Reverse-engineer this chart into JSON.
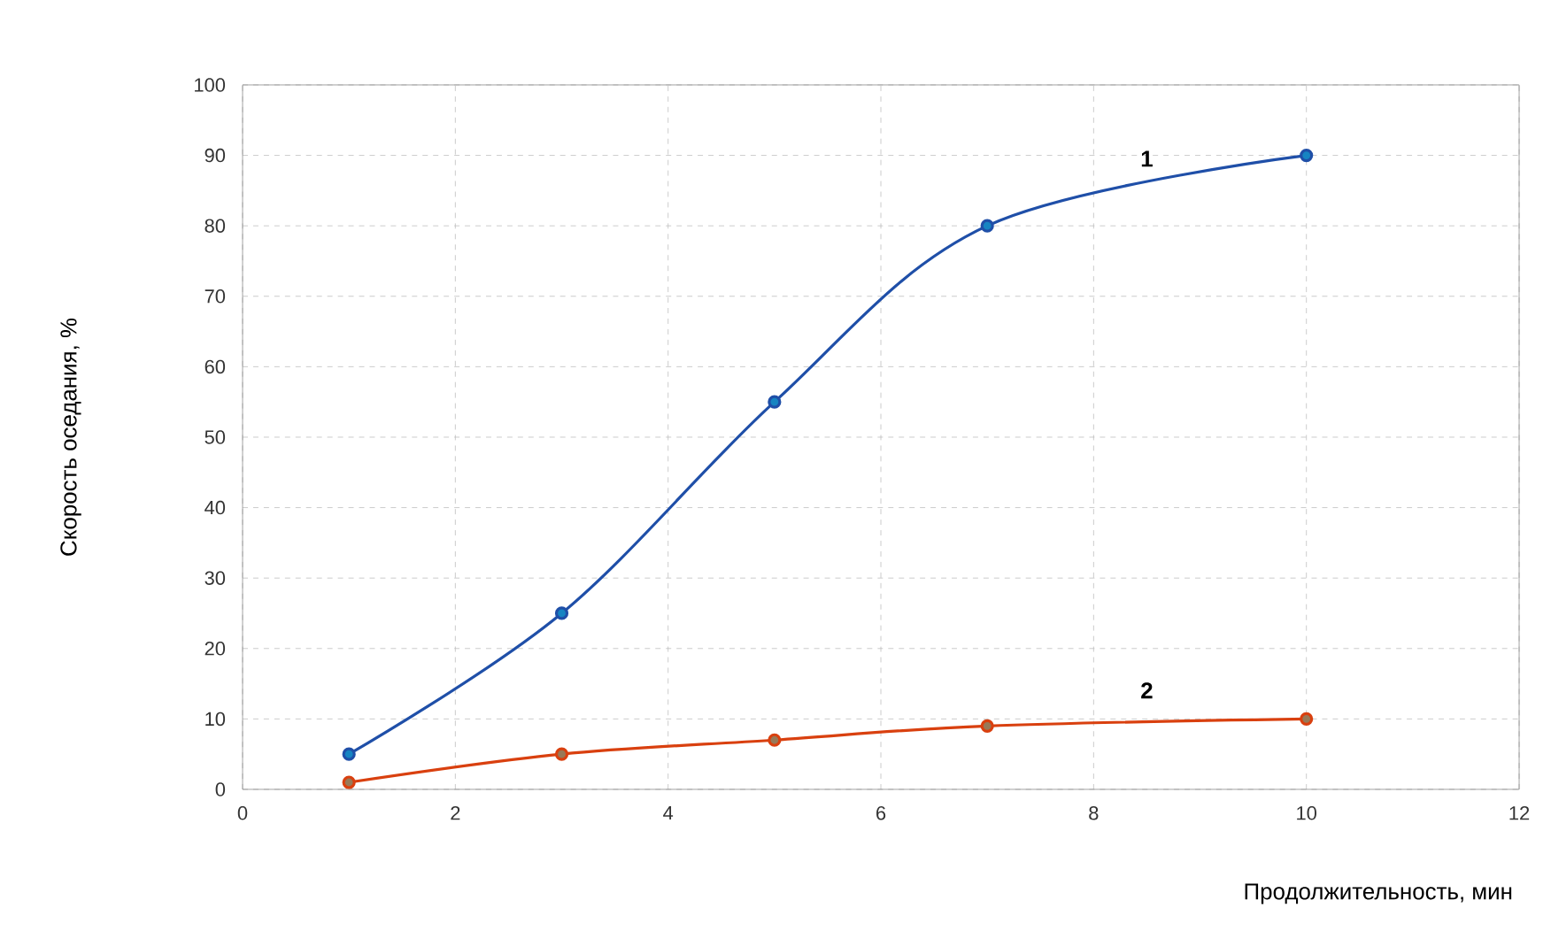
{
  "chart_data": {
    "type": "line",
    "xlabel": "Продолжительность, мин",
    "ylabel": "Скорость оседания, %",
    "x": [
      1,
      3,
      5,
      7,
      10
    ],
    "series": [
      {
        "name": "1",
        "color": "#1f4fa8",
        "values": [
          5,
          25,
          55,
          80,
          90
        ]
      },
      {
        "name": "2",
        "color": "#d9400f",
        "values": [
          1,
          5,
          7,
          9,
          10
        ]
      }
    ],
    "xlim": [
      0,
      12
    ],
    "xticks": [
      0,
      2,
      4,
      6,
      8,
      10,
      12
    ],
    "ylim": [
      0,
      100
    ],
    "yticks": [
      0,
      10,
      20,
      30,
      40,
      50,
      60,
      70,
      80,
      90,
      100
    ],
    "grid": true,
    "marker": "circle",
    "line_style": "solid"
  }
}
